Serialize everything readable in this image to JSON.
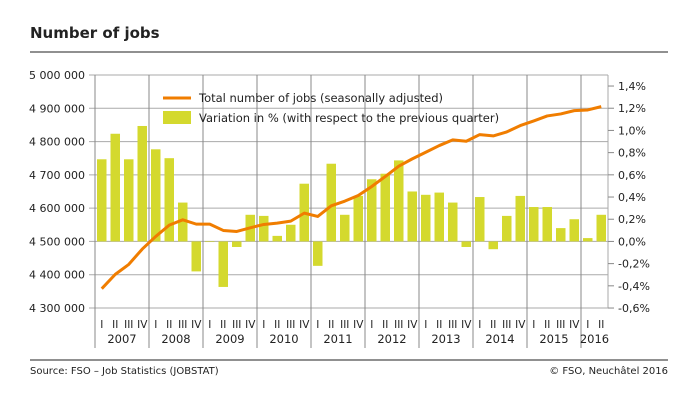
{
  "title": "Number of jobs",
  "source": "Source: FSO – Job Statistics (JOBSTAT)",
  "copyright": "© FSO, Neuchâtel 2016",
  "chart_data": {
    "type": "bar+line",
    "years": [
      "2007",
      "2008",
      "2009",
      "2010",
      "2011",
      "2012",
      "2013",
      "2014",
      "2015",
      "2016"
    ],
    "quarter_labels": [
      "I",
      "II",
      "III",
      "IV"
    ],
    "quarters_last_year": 2,
    "left_axis": {
      "ylim": [
        4300000,
        5000000
      ],
      "ticks": [
        "4 300 000",
        "4 400 000",
        "4 500 000",
        "4 600 000",
        "4 700 000",
        "4 800 000",
        "4 900 000",
        "5 000 000"
      ]
    },
    "right_axis": {
      "ylim": [
        -0.6,
        1.4
      ],
      "ticks": [
        "-0,6%",
        "-0,4%",
        "-0,2%",
        "0,0%",
        "0,2%",
        "0,4%",
        "0,6%",
        "0,8%",
        "1,0%",
        "1,2%",
        "1,4%"
      ]
    },
    "grid": true,
    "legend_placement": "top-left",
    "series": [
      {
        "name": "Total number of jobs (seasonally adjusted)",
        "type": "line",
        "axis": "left",
        "color": "#f07d00",
        "values": [
          4358000,
          4401000,
          4431000,
          4477000,
          4515000,
          4549000,
          4565000,
          4552000,
          4552000,
          4533000,
          4530000,
          4541000,
          4551000,
          4555000,
          4561000,
          4585000,
          4575000,
          4607000,
          4621000,
          4638000,
          4665000,
          4695000,
          4726000,
          4748000,
          4768000,
          4788000,
          4805000,
          4801000,
          4821000,
          4817000,
          4829000,
          4848000,
          4862000,
          4877000,
          4883000,
          4893000,
          4895000,
          4905000
        ]
      },
      {
        "name": "Variation in % (with respect to the previous quarter)",
        "type": "bar",
        "axis": "right",
        "color": "#d4d92e",
        "values": [
          0.74,
          0.97,
          0.74,
          1.04,
          0.83,
          0.75,
          0.35,
          -0.27,
          0.0,
          -0.41,
          -0.05,
          0.24,
          0.23,
          0.05,
          0.15,
          0.52,
          -0.22,
          0.7,
          0.24,
          0.41,
          0.56,
          0.61,
          0.73,
          0.45,
          0.42,
          0.44,
          0.35,
          -0.05,
          0.4,
          -0.07,
          0.23,
          0.41,
          0.31,
          0.31,
          0.12,
          0.2,
          0.03,
          0.24
        ]
      }
    ]
  }
}
